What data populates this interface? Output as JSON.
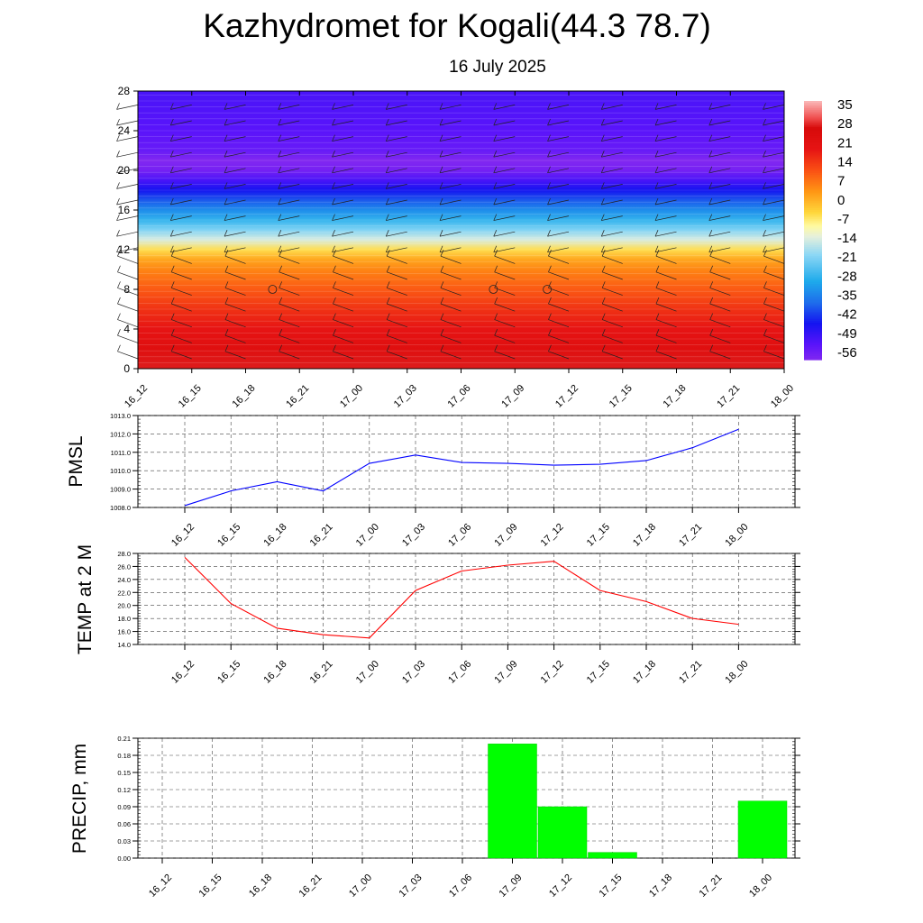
{
  "header": {
    "title": "Kazhydromet for Kogali(44.3 78.7)",
    "subtitle": "16 July 2025"
  },
  "chart_data": [
    {
      "type": "heatmap",
      "title": "",
      "x_categories": [
        "16_12",
        "16_15",
        "16_18",
        "16_21",
        "17_00",
        "17_03",
        "17_06",
        "17_09",
        "17_12",
        "17_15",
        "17_18",
        "17_21",
        "18_00"
      ],
      "y_ticks": [
        0,
        4,
        8,
        12,
        16,
        20,
        24,
        28
      ],
      "ylim": [
        0,
        28
      ],
      "colorbar": {
        "labels": [
          "35",
          "28",
          "21",
          "14",
          "7",
          "0",
          "-7",
          "-14",
          "-21",
          "-28",
          "-35",
          "-42",
          "-49",
          "-56"
        ],
        "range": [
          -60,
          38
        ]
      },
      "temperature_profile": {
        "heights": [
          0,
          2,
          4,
          6,
          8,
          10,
          11,
          12,
          13,
          14,
          15,
          16,
          17,
          18,
          19,
          20,
          21,
          22,
          23,
          24,
          26,
          28
        ],
        "values": [
          29,
          24,
          20,
          16,
          11,
          6,
          2,
          -5,
          -14,
          -21,
          -28,
          -34,
          -40,
          -46,
          -52,
          -58,
          -60,
          -56,
          -55,
          -54,
          -53,
          -52
        ]
      },
      "wind_barbs": true
    },
    {
      "type": "line",
      "ylabel": "PMSL",
      "x_categories": [
        "16_12",
        "16_15",
        "16_18",
        "16_21",
        "17_00",
        "17_03",
        "17_06",
        "17_09",
        "17_12",
        "17_15",
        "17_18",
        "17_21",
        "18_00"
      ],
      "y_ticks": [
        "1008.0",
        "1009.0",
        "1010.0",
        "1011.0",
        "1012.0",
        "1013.0"
      ],
      "ylim": [
        1008,
        1013
      ],
      "series": [
        {
          "values": [
            1008.1,
            1008.9,
            1009.4,
            1008.9,
            1010.4,
            1010.85,
            1010.45,
            1010.4,
            1010.3,
            1010.35,
            1010.55,
            1011.25,
            1012.25
          ],
          "color": "#0000ff"
        }
      ],
      "grid": true
    },
    {
      "type": "line",
      "ylabel": "TEMP at 2 M",
      "x_categories": [
        "16_12",
        "16_15",
        "16_18",
        "16_21",
        "17_00",
        "17_03",
        "17_06",
        "17_09",
        "17_12",
        "17_15",
        "17_18",
        "17_21",
        "18_00"
      ],
      "y_ticks": [
        "14.0",
        "16.0",
        "18.0",
        "20.0",
        "22.0",
        "24.0",
        "26.0",
        "28.0"
      ],
      "ylim": [
        14,
        28
      ],
      "series": [
        {
          "values": [
            27.4,
            20.3,
            16.5,
            15.5,
            15.0,
            22.3,
            25.3,
            26.2,
            26.8,
            22.3,
            20.6,
            18.0,
            17.1
          ],
          "color": "#ff0000"
        }
      ],
      "grid": true
    },
    {
      "type": "bar",
      "ylabel": "PRECIP, mm",
      "x_categories": [
        "16_12",
        "16_15",
        "16_18",
        "16_21",
        "17_00",
        "17_03",
        "17_06",
        "17_09",
        "17_12",
        "17_15",
        "17_18",
        "17_21",
        "18_00"
      ],
      "y_ticks": [
        "0.00",
        "0.03",
        "0.06",
        "0.09",
        "0.12",
        "0.15",
        "0.18",
        "0.21"
      ],
      "ylim": [
        0,
        0.21
      ],
      "values": [
        0,
        0,
        0,
        0,
        0,
        0,
        0,
        0.2,
        0.09,
        0.01,
        0,
        0,
        0.1
      ],
      "color": "#00ff00",
      "grid": true
    }
  ]
}
